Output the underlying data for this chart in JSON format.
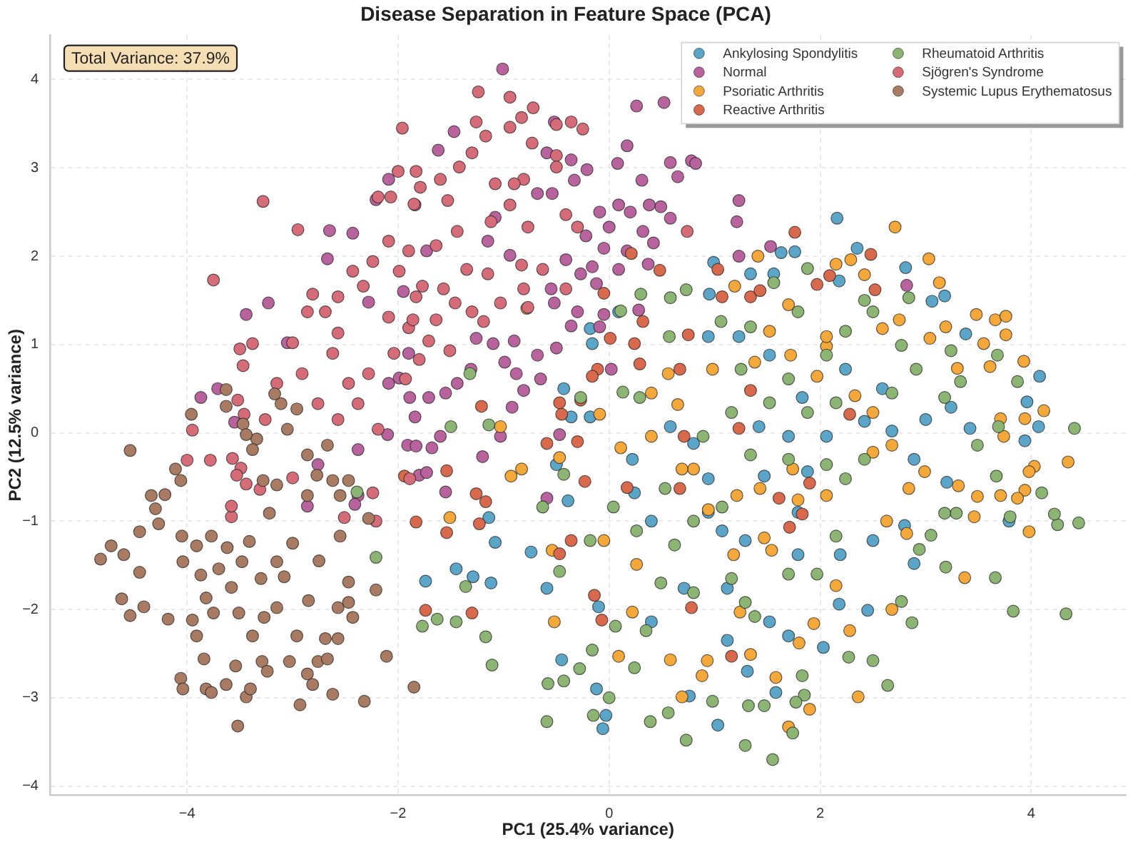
{
  "chart_data": {
    "type": "scatter",
    "title": "Disease Separation in Feature Space (PCA)",
    "xlabel": "PC1 (25.4% variance)",
    "ylabel": "PC2 (12.5% variance)",
    "annotations": [
      "Total Variance: 37.9%"
    ],
    "xlim": [
      -5.3,
      4.9
    ],
    "ylim": [
      -4.1,
      4.5
    ],
    "xticks": [
      {
        "value": -4,
        "label": "−4"
      },
      {
        "value": -2,
        "label": "−2"
      },
      0,
      2,
      4
    ],
    "yticks": [
      {
        "value": -4,
        "label": "−4"
      },
      {
        "value": -3,
        "label": "−3"
      },
      {
        "value": -2,
        "label": "−2"
      },
      {
        "value": -1,
        "label": "−1"
      },
      0,
      1,
      2,
      3,
      4
    ],
    "grid": true,
    "legend": "top right",
    "marker": "circle",
    "series": [
      {
        "name": "Ankylosing Spondylitis",
        "color": "#5aa5c8",
        "x": [
          2.16,
          2.35,
          1.76,
          1.63,
          1.56,
          0.99,
          0.95,
          1.34,
          2.18,
          2.81,
          3.06,
          3.18,
          3.38,
          4.08,
          3.96,
          4.07,
          3.94,
          3.24,
          2.89,
          3.2,
          3.79,
          2.89,
          2.8,
          2.5,
          2.45,
          2.18,
          2.03,
          1.58,
          1.03,
          -0.06,
          -0.03,
          -0.12,
          -0.45,
          1.31,
          1.7,
          1.52,
          1.12,
          1.12,
          1.07,
          1.29,
          1.79,
          1.79,
          1.47,
          0.94,
          0.4,
          0.22,
          0.58,
          0.8,
          1.42,
          1.7,
          2.06,
          2.42,
          2.68,
          3.0,
          3.42,
          2.24,
          2.59,
          1.52,
          1.23,
          0.94,
          0.09,
          -0.18,
          -0.16,
          -0.43,
          -0.36,
          -0.18,
          -0.5,
          -0.59,
          -0.1,
          0.4,
          0.71,
          2.19,
          0.24,
          0.94,
          1.88,
          1.83,
          -1.74,
          -1.45,
          -1.29,
          -1.14,
          -1.08,
          -0.74,
          -0.39,
          -1.12,
          0.76
        ],
        "values": [
          2.43,
          2.09,
          2.05,
          2.04,
          1.8,
          1.93,
          1.57,
          1.8,
          1.72,
          1.87,
          1.49,
          1.55,
          1.12,
          0.64,
          0.35,
          0.07,
          -0.09,
          0.29,
          -0.3,
          -0.56,
          -1.0,
          -1.48,
          -1.05,
          -1.22,
          -2.01,
          -1.94,
          -2.43,
          -2.94,
          -3.31,
          -3.35,
          -3.2,
          -2.9,
          -2.57,
          -2.7,
          -2.3,
          -2.14,
          -2.35,
          -1.76,
          -1.11,
          -1.22,
          -1.38,
          -0.9,
          -0.49,
          -0.52,
          -1.0,
          -0.3,
          0.07,
          -0.12,
          0.07,
          -0.04,
          -0.04,
          0.13,
          0.02,
          0.15,
          0.05,
          0.72,
          0.5,
          0.88,
          1.09,
          1.09,
          1.37,
          1.18,
          1.01,
          0.5,
          0.18,
          0.18,
          -0.36,
          -1.76,
          -1.97,
          -2.14,
          -1.76,
          -1.38,
          -0.68,
          -0.9,
          -0.44,
          0.4,
          -1.68,
          -1.54,
          -1.63,
          -0.96,
          -1.24,
          -1.35,
          -0.77,
          -1.7,
          -2.98
        ]
      },
      {
        "name": "Normal",
        "color": "#b9639e",
        "x": [
          -1.01,
          0.26,
          0.52,
          0.17,
          0.78,
          0.82,
          0.58,
          0.08,
          1.23,
          1.21,
          0.65,
          0.31,
          0.49,
          0.38,
          0.58,
          0.2,
          0.09,
          -0.09,
          0.0,
          -0.22,
          0.32,
          0.42,
          -0.05,
          0.17,
          0.09,
          -0.16,
          -0.12,
          -0.27,
          -0.41,
          -0.55,
          -0.52,
          -0.3,
          -0.05,
          -0.5,
          -0.68,
          -0.9,
          -0.88,
          -0.99,
          -0.81,
          -0.65,
          -1.1,
          -1.26,
          -1.31,
          -1.44,
          -1.55,
          -1.71,
          -1.89,
          -1.84,
          -1.68,
          -1.6,
          -1.03,
          -0.92,
          -1.2,
          -1.55,
          -1.91,
          -1.15,
          -0.94,
          -1.08,
          -0.68,
          -0.54,
          -0.33,
          -0.21,
          -0.36,
          -0.59,
          -0.52,
          -1.47,
          -1.62,
          -1.84,
          -1.73,
          -3.44,
          -3.23,
          -3.87,
          -3.71,
          -3.55,
          -2.67,
          -2.65,
          -3.05,
          -2.43,
          -2.1,
          -2.38,
          -2.76,
          -2.38,
          -2.86,
          -2.41,
          -1.83,
          -1.8,
          -1.73,
          -1.9,
          -2.09,
          -1.99,
          -2.28,
          -1.95,
          -2.09,
          -2.21,
          2.82,
          1.53,
          1.23,
          0.28,
          -0.09,
          -0.36,
          -0.47,
          -0.59,
          0.02,
          0.37
        ],
        "values": [
          4.12,
          3.7,
          3.74,
          3.25,
          3.08,
          3.05,
          3.06,
          3.05,
          2.63,
          2.39,
          2.9,
          2.86,
          2.56,
          2.58,
          2.43,
          2.5,
          2.58,
          2.5,
          2.33,
          2.23,
          2.28,
          2.15,
          2.09,
          2.06,
          1.85,
          1.88,
          1.69,
          1.8,
          1.96,
          1.63,
          1.47,
          1.37,
          1.34,
          0.96,
          0.88,
          1.04,
          0.67,
          0.8,
          0.48,
          0.61,
          1.01,
          1.07,
          0.72,
          0.56,
          0.45,
          0.4,
          0.4,
          0.18,
          -0.17,
          -0.04,
          -0.04,
          0.29,
          -0.27,
          -0.67,
          -0.14,
          2.17,
          2.01,
          2.44,
          2.71,
          2.71,
          2.86,
          2.98,
          3.09,
          3.17,
          3.52,
          3.41,
          3.2,
          2.58,
          2.06,
          1.34,
          1.47,
          0.4,
          0.5,
          0.12,
          1.97,
          2.29,
          1.02,
          2.26,
          -0.02,
          -0.19,
          -0.36,
          -0.71,
          -0.83,
          -0.81,
          -0.15,
          -0.48,
          -0.45,
          0.9,
          0.56,
          0.62,
          1.48,
          1.6,
          2.87,
          2.64,
          1.67,
          2.11,
          2.0,
          1.39,
          1.2,
          1.21,
          -0.02,
          -0.74,
          0.72,
          1.91
        ]
      },
      {
        "name": "Psoriatic Arthritis",
        "color": "#f4a83a",
        "x": [
          2.71,
          3.03,
          3.13,
          2.29,
          2.42,
          2.15,
          1.41,
          1.19,
          3.48,
          3.66,
          3.76,
          3.76,
          3.19,
          3.04,
          3.93,
          3.55,
          3.3,
          3.61,
          4.12,
          3.94,
          4.35,
          3.71,
          3.74,
          4.03,
          3.98,
          3.94,
          3.87,
          3.71,
          3.49,
          3.46,
          3.98,
          3.37,
          2.82,
          2.63,
          2.84,
          2.99,
          3.31,
          2.36,
          2.28,
          1.9,
          1.7,
          1.58,
          0.93,
          0.88,
          0.69,
          0.58,
          0.09,
          0.22,
          1.94,
          1.8,
          2.15,
          1.47,
          1.54,
          1.18,
          0.94,
          1.21,
          1.79,
          2.06,
          1.74,
          1.43,
          0.8,
          0.69,
          0.4,
          0.11,
          -0.09,
          0.4,
          0.65,
          0.98,
          1.38,
          1.72,
          1.97,
          2.33,
          2.5,
          2.68,
          2.5,
          2.06,
          2.06,
          2.59,
          2.75,
          1.7,
          1.52,
          0.56,
          -0.54,
          -0.52,
          -0.05,
          0.26,
          1.34,
          1.24,
          2.68,
          -1.03,
          -0.83,
          -0.47,
          -0.78,
          -0.93,
          -1.51
        ],
        "values": [
          2.33,
          1.97,
          1.7,
          1.96,
          1.79,
          1.91,
          2.0,
          1.66,
          1.34,
          1.28,
          1.32,
          1.11,
          1.2,
          1.07,
          0.81,
          1.01,
          0.73,
          0.75,
          0.25,
          0.16,
          -0.33,
          0.16,
          -0.04,
          -0.38,
          -0.44,
          -0.65,
          -0.74,
          -0.71,
          -0.72,
          -0.95,
          -1.12,
          -1.64,
          -1.14,
          -1.0,
          -0.63,
          -0.44,
          -0.6,
          -2.99,
          -2.24,
          -3.13,
          -3.33,
          -2.77,
          -2.58,
          -2.75,
          -2.99,
          -2.57,
          -2.53,
          -2.03,
          -2.16,
          -2.38,
          -1.73,
          -1.19,
          -1.33,
          -1.38,
          -0.87,
          -0.71,
          -0.76,
          -0.71,
          -0.41,
          -0.63,
          -0.41,
          -0.41,
          -0.04,
          -0.17,
          0.21,
          0.45,
          0.32,
          0.72,
          0.8,
          0.88,
          0.64,
          0.42,
          0.23,
          -0.14,
          -0.22,
          0.98,
          1.09,
          1.18,
          1.28,
          1.45,
          1.15,
          0.67,
          -1.33,
          -2.14,
          -1.22,
          -1.49,
          -2.51,
          -2.03,
          -2.0,
          0.07,
          -0.41,
          -0.28,
          1.41,
          -0.49,
          -0.96
        ]
      },
      {
        "name": "Reactive Arthritis",
        "color": "#d9694c",
        "x": [
          1.76,
          2.48,
          2.52,
          1.97,
          2.09,
          1.07,
          1.34,
          1.43,
          1.03,
          0.48,
          0.32,
          0.21,
          -0.05,
          0.24,
          0.75,
          0.67,
          0.29,
          -0.11,
          -0.16,
          -0.27,
          -0.47,
          -0.45,
          -0.59,
          -0.3,
          0.71,
          1.23,
          1.34,
          2.28,
          1.61,
          1.9,
          1.71,
          1.83,
          0.67,
          0.17,
          -0.23,
          -0.36,
          -0.47,
          -0.14,
          -0.07,
          0.78,
          1.16,
          -1.94,
          -1.83,
          -1.74,
          -1.3,
          -1.26,
          -1.17,
          -1.54,
          -1.23,
          -1.54,
          -1.21,
          0.01
        ],
        "values": [
          2.27,
          2.02,
          1.62,
          1.68,
          1.78,
          1.54,
          1.54,
          1.61,
          1.85,
          1.84,
          1.26,
          2.03,
          1.58,
          1.01,
          1.11,
          0.72,
          0.78,
          0.72,
          0.64,
          0.37,
          0.34,
          0.21,
          -0.12,
          -0.1,
          -0.04,
          0.05,
          0.48,
          0.21,
          -0.74,
          -0.57,
          -1.07,
          -0.92,
          -0.63,
          -0.62,
          -0.55,
          -1.22,
          -1.37,
          -1.84,
          -2.12,
          -1.98,
          -2.53,
          -0.49,
          -1.01,
          -2.01,
          -2.04,
          -0.69,
          -0.78,
          -1.13,
          -1.03,
          -0.43,
          0.3,
          1.07
        ]
      },
      {
        "name": "Rheumatoid Arthritis",
        "color": "#8cb574",
        "x": [
          4.41,
          4.45,
          4.25,
          4.22,
          4.33,
          3.83,
          3.66,
          3.19,
          3.05,
          2.94,
          2.87,
          2.77,
          2.64,
          2.5,
          2.27,
          1.74,
          1.55,
          1.29,
          0.73,
          0.39,
          0.0,
          -0.15,
          -0.59,
          -0.43,
          -0.58,
          -0.28,
          0.24,
          0.56,
          0.98,
          1.32,
          1.83,
          1.85,
          1.47,
          3.29,
          3.18,
          3.8,
          4.1,
          3.67,
          3.49,
          3.69,
          3.87,
          3.68,
          3.24,
          3.33,
          3.18,
          2.91,
          2.77,
          2.84,
          2.5,
          2.42,
          1.88,
          1.56,
          0.73,
          0.58,
          0.3,
          1.06,
          0.57,
          0.11,
          0.29,
          0.13,
          -0.27,
          -0.63,
          -0.43,
          -0.47,
          -0.16,
          0.06,
          0.35,
          0.62,
          0.49,
          0.8,
          1.16,
          1.29,
          1.38,
          1.7,
          1.97,
          2.15,
          2.24,
          2.42,
          2.06,
          1.7,
          1.34,
          1.07,
          0.8,
          0.53,
          0.26,
          0.04,
          -0.18,
          0.89,
          1.16,
          1.52,
          1.88,
          2.15,
          2.68,
          1.7,
          1.25,
          2.06,
          2.24,
          1.79,
          1.34,
          -2.39,
          -2.21,
          -1.5,
          -1.14,
          -1.32,
          -1.77,
          -1.63,
          -1.45,
          -1.17,
          -1.11,
          -1.36,
          1.77
        ],
        "values": [
          0.05,
          -1.02,
          -1.04,
          -0.92,
          -2.05,
          -2.02,
          -1.64,
          -1.52,
          -1.16,
          -1.32,
          -2.15,
          -1.91,
          -2.86,
          -2.58,
          -2.54,
          -3.4,
          -3.7,
          -3.54,
          -3.48,
          -3.27,
          -3.0,
          -3.2,
          -3.27,
          -2.81,
          -2.84,
          -2.67,
          -2.66,
          -3.17,
          -3.04,
          -3.09,
          -2.75,
          -2.97,
          -3.09,
          -0.91,
          -0.91,
          -0.95,
          -0.68,
          -0.49,
          -0.14,
          0.07,
          0.58,
          0.88,
          0.93,
          0.58,
          0.4,
          0.72,
          0.99,
          1.53,
          1.37,
          1.5,
          1.86,
          1.7,
          1.62,
          1.53,
          1.57,
          1.26,
          1.09,
          1.38,
          0.4,
          0.46,
          0.4,
          -0.84,
          -0.47,
          -1.57,
          -2.46,
          -2.19,
          -2.24,
          -1.27,
          -1.7,
          -1.81,
          -1.65,
          -1.92,
          -2.08,
          -1.6,
          -1.6,
          -1.17,
          -0.52,
          -0.3,
          -0.36,
          -0.3,
          -0.25,
          -0.84,
          -1.0,
          -0.63,
          -1.11,
          -0.84,
          -1.22,
          -0.04,
          0.23,
          0.34,
          0.23,
          0.34,
          0.45,
          0.61,
          0.72,
          0.88,
          1.15,
          1.37,
          1.2,
          -0.67,
          -1.41,
          0.07,
          0.09,
          0.67,
          -2.19,
          -2.11,
          -2.14,
          -2.31,
          -2.63,
          -1.74,
          -3.05
        ]
      },
      {
        "name": "Sjögren's Syndrome",
        "color": "#d56c78",
        "x": [
          -1.96,
          -2.0,
          -1.83,
          -1.79,
          -2.07,
          -2.19,
          -1.85,
          -3.28,
          -2.95,
          -3.75,
          -3.5,
          -3.38,
          -3.47,
          -3.52,
          -3.46,
          -3.95,
          -4.0,
          -3.78,
          -3.58,
          -3.49,
          -3.31,
          -3.44,
          -3.0,
          -2.21,
          -2.24,
          -3.26,
          -3.15,
          -2.91,
          -3.0,
          -2.86,
          -2.69,
          -2.81,
          -2.57,
          -2.62,
          -2.47,
          -2.28,
          -2.38,
          -2.76,
          -2.57,
          -2.19,
          -2.43,
          -2.24,
          -2.33,
          -2.09,
          -2.09,
          -1.9,
          -2.04,
          -1.83,
          -1.99,
          -1.9,
          -2.57,
          -1.24,
          -0.94,
          -1.26,
          -1.17,
          -0.94,
          -0.83,
          -0.72,
          -0.73,
          -0.5,
          -0.36,
          -0.25,
          -1.3,
          -1.42,
          -0.5,
          -0.5,
          -0.81,
          -0.9,
          -1.08,
          -1.6,
          -1.53,
          -0.94,
          -0.41,
          -0.3,
          -0.77,
          -1.12,
          -1.44,
          -1.64,
          -1.35,
          -1.15,
          -0.83,
          -0.63,
          -0.41,
          -0.81,
          -1.57,
          -1.77,
          -1.46,
          -1.03,
          -1.86,
          -1.64,
          -1.3,
          -1.71,
          -1.51,
          -1.8,
          -1.19,
          -0.77,
          -1.93,
          -1.89,
          0.74,
          -3.53,
          -3.57,
          -3.58,
          -2.51
        ],
        "values": [
          3.45,
          2.96,
          2.96,
          2.78,
          2.67,
          2.67,
          2.59,
          2.62,
          2.3,
          1.73,
          0.95,
          1.01,
          0.76,
          0.37,
          0.21,
          0.03,
          -0.31,
          -0.31,
          -0.95,
          -0.4,
          -0.64,
          -0.58,
          -0.51,
          -1.0,
          -0.68,
          0.15,
          0.56,
          0.67,
          1.02,
          1.37,
          1.37,
          1.57,
          1.13,
          0.9,
          0.56,
          0.67,
          0.33,
          0.33,
          0.15,
          0.04,
          1.83,
          1.94,
          1.66,
          2.17,
          1.31,
          1.19,
          0.9,
          1.54,
          1.83,
          2.06,
          1.54,
          3.86,
          3.8,
          3.52,
          3.36,
          3.46,
          3.57,
          3.68,
          3.28,
          3.49,
          3.52,
          3.44,
          3.17,
          3.01,
          3.14,
          3.01,
          2.87,
          2.82,
          2.82,
          2.87,
          2.63,
          2.58,
          2.47,
          2.33,
          2.33,
          2.39,
          2.28,
          2.12,
          1.85,
          1.8,
          1.9,
          1.85,
          1.63,
          1.63,
          1.63,
          1.66,
          1.47,
          1.47,
          1.28,
          1.28,
          1.37,
          1.04,
          0.93,
          0.83,
          1.26,
          1.42,
          0.61,
          -0.52,
          2.28,
          -0.48,
          -0.29,
          -0.83,
          -0.96
        ]
      },
      {
        "name": "Systemic Lupus Erythematosus",
        "color": "#a87b62",
        "x": [
          -4.54,
          -4.82,
          -4.72,
          -4.6,
          -4.62,
          -4.54,
          -4.45,
          -4.45,
          -4.41,
          -4.34,
          -4.3,
          -4.27,
          -4.21,
          -4.18,
          -4.11,
          -4.06,
          -4.05,
          -4.04,
          -4.06,
          -4.04,
          -3.95,
          -3.96,
          -3.91,
          -3.84,
          -3.82,
          -3.77,
          -3.91,
          -3.87,
          -3.82,
          -3.75,
          -3.77,
          -3.7,
          -3.63,
          -3.52,
          -3.44,
          -3.4,
          -3.54,
          -3.51,
          -3.58,
          -3.48,
          -3.41,
          -3.38,
          -3.27,
          -3.29,
          -3.24,
          -3.15,
          -3.15,
          -3.08,
          -3.22,
          -3.03,
          -2.93,
          -2.96,
          -2.86,
          -2.81,
          -2.76,
          -2.62,
          -2.67,
          -2.69,
          -2.57,
          -2.57,
          -2.47,
          -2.55,
          -2.47,
          -2.32,
          -2.28,
          -2.43,
          -2.21,
          -2.11,
          -1.85,
          -2.86,
          -2.77,
          -2.62,
          -2.55,
          -2.47,
          -2.67,
          -2.86,
          -2.96,
          -3.05,
          -3.11,
          -3.17,
          -3.34,
          -3.38,
          -3.28,
          -3.15,
          -3.63,
          -3.47,
          -3.63,
          -3.44,
          -3.62,
          -3.3,
          -2.85,
          -3.0,
          -2.75
        ],
        "values": [
          -0.2,
          -1.43,
          -1.28,
          -1.38,
          -1.88,
          -2.07,
          -1.12,
          -1.58,
          -1.97,
          -0.71,
          -0.86,
          -1.03,
          -0.7,
          -2.11,
          -0.41,
          -0.54,
          -1.17,
          -1.46,
          -2.78,
          -2.9,
          -2.12,
          0.21,
          -2.3,
          -2.56,
          -2.9,
          -2.94,
          -1.28,
          -1.61,
          -1.87,
          -2.04,
          -1.17,
          -1.54,
          -2.85,
          -3.32,
          -2.99,
          -2.9,
          -2.64,
          -2.04,
          -1.75,
          -1.46,
          -1.23,
          -2.3,
          -2.09,
          -2.59,
          -2.7,
          -1.98,
          -1.46,
          -1.63,
          -0.91,
          -2.59,
          -3.08,
          -2.3,
          -2.73,
          -2.85,
          -2.59,
          -2.96,
          -2.56,
          -2.33,
          -2.33,
          -1.98,
          -1.92,
          -1.17,
          -1.69,
          -3.04,
          -0.97,
          -2.09,
          -1.78,
          -2.53,
          -2.88,
          -0.71,
          -0.48,
          -0.54,
          -0.71,
          -0.54,
          -0.14,
          -0.25,
          0.27,
          0.04,
          0.33,
          0.44,
          -0.07,
          -0.19,
          -0.54,
          -0.59,
          0.49,
          0.1,
          0.3,
          -0.02,
          -1.3,
          -1.65,
          -1.9,
          -1.25,
          -1.45
        ]
      }
    ]
  }
}
